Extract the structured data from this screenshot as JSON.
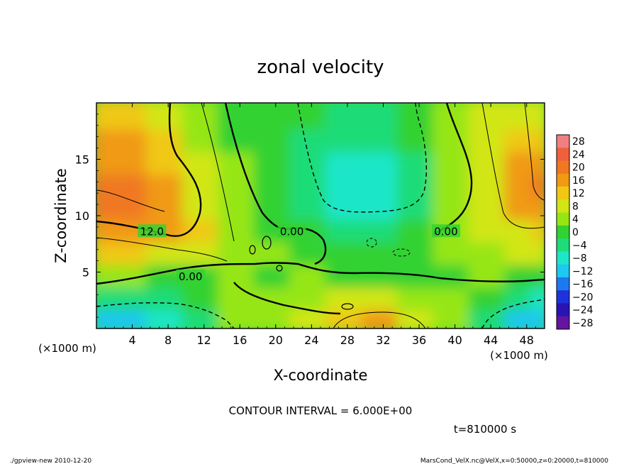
{
  "chart_data": {
    "type": "heatmap",
    "title": "zonal velocity",
    "xlabel": "X-coordinate",
    "ylabel": "Z-coordinate",
    "x_unit_left": "(×1000 m)",
    "x_unit_right": "(×1000 m)",
    "xlim": [
      0,
      50
    ],
    "ylim": [
      0,
      20
    ],
    "x_ticks": [
      4,
      8,
      12,
      16,
      20,
      24,
      28,
      32,
      36,
      40,
      44,
      48
    ],
    "y_ticks": [
      5,
      10,
      15
    ],
    "colorbar": {
      "levels": [
        28,
        24,
        20,
        16,
        12,
        8,
        4,
        0,
        -4,
        -8,
        -12,
        -16,
        -20,
        -24,
        -28
      ],
      "colors": [
        "#f08080",
        "#f0603c",
        "#f07820",
        "#f09a14",
        "#f0c814",
        "#d2e614",
        "#96e614",
        "#32d232",
        "#1edc78",
        "#1ee6c8",
        "#1ec8f0",
        "#1e78f0",
        "#1e32dc",
        "#2814b4",
        "#6414a0"
      ]
    },
    "contour_labels": [
      {
        "text": "12.0",
        "x": 6.2,
        "y": 8.6
      },
      {
        "text": "0.00",
        "x": 10.5,
        "y": 4.6
      },
      {
        "text": "0.00",
        "x": 21.8,
        "y": 8.6
      },
      {
        "text": "0.00",
        "x": 39.0,
        "y": 8.6
      }
    ],
    "contour_interval_text": "CONTOUR INTERVAL = 6.000E+00",
    "time_text": "t=810000 s",
    "field_grid": {
      "x": [
        0,
        4,
        8,
        12,
        16,
        20,
        24,
        28,
        32,
        36,
        40,
        44,
        48,
        50
      ],
      "z": [
        1,
        3,
        5,
        7,
        9,
        11,
        13,
        15,
        17,
        19
      ],
      "u": [
        [
          -13,
          -12,
          -10,
          -4,
          2,
          4,
          6,
          10,
          14,
          8,
          2,
          -6,
          -12,
          -14
        ],
        [
          -6,
          -5,
          -4,
          0,
          2,
          3,
          4,
          6,
          7,
          4,
          2,
          -1,
          -6,
          -7
        ],
        [
          4,
          3,
          1,
          0,
          2,
          1,
          2,
          1,
          0,
          0,
          1,
          2,
          0,
          0
        ],
        [
          10,
          10,
          9,
          8,
          3,
          2,
          1,
          0,
          -1,
          0,
          2,
          4,
          6,
          6
        ],
        [
          14,
          16,
          14,
          10,
          4,
          1,
          -2,
          -4,
          -3,
          0,
          3,
          6,
          9,
          10
        ],
        [
          18,
          19,
          16,
          9,
          3,
          0,
          -4,
          -8,
          -8,
          -3,
          4,
          8,
          14,
          16
        ],
        [
          20,
          18,
          14,
          7,
          2,
          -1,
          -5,
          -10,
          -9,
          -4,
          3,
          8,
          16,
          18
        ],
        [
          16,
          16,
          12,
          6,
          2,
          -1,
          -4,
          -7,
          -7,
          -3,
          3,
          7,
          14,
          14
        ],
        [
          14,
          14,
          10,
          5,
          1,
          0,
          -3,
          -5,
          -5,
          -2,
          3,
          6,
          10,
          10
        ],
        [
          12,
          12,
          9,
          5,
          1,
          0,
          -2,
          -4,
          -4,
          -1,
          4,
          6,
          8,
          8
        ]
      ]
    }
  },
  "footer": {
    "left": "./gpview-new  2010-12-20",
    "right": "MarsCond_VelX.nc@VelX,x=0:50000,z=0:20000,t=810000"
  }
}
